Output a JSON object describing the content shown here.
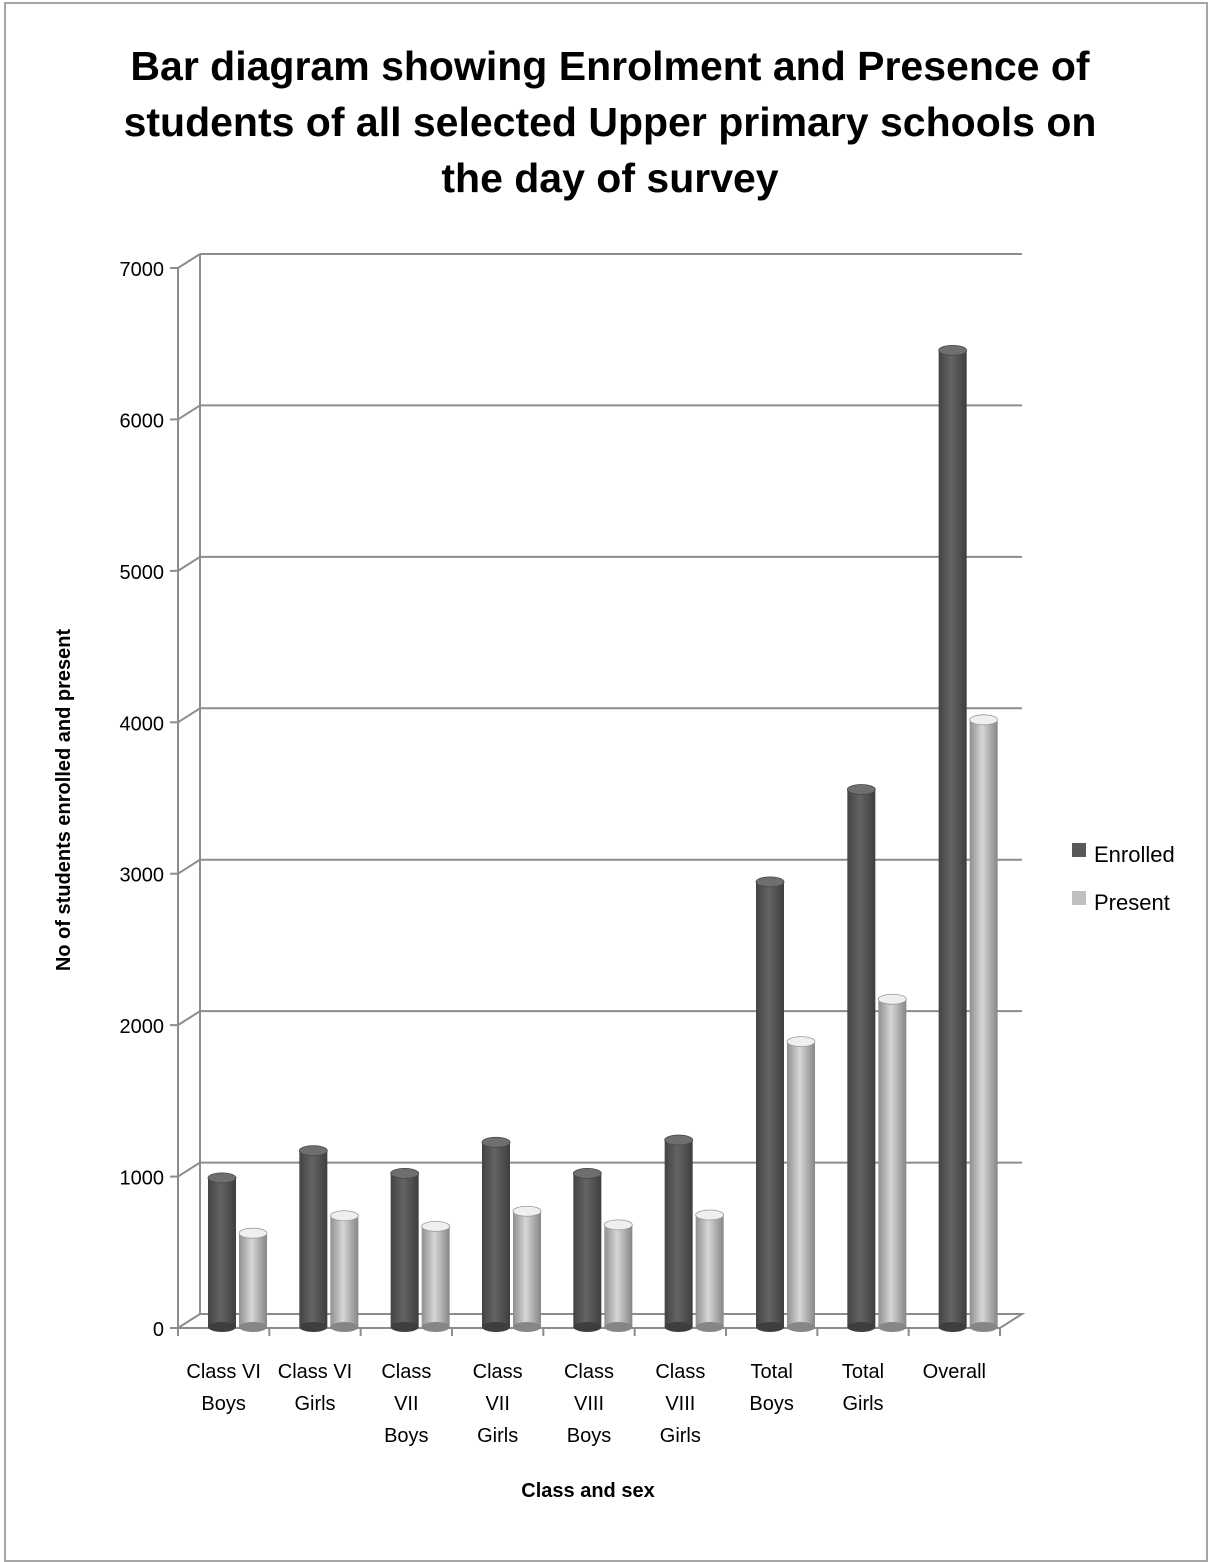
{
  "chart_data": {
    "type": "bar",
    "title": "Bar diagram showing Enrolment and Presence of students of all selected Upper primary schools on the day of survey",
    "xlabel": "Class and sex",
    "ylabel": "No of students enrolled and present",
    "ylim": [
      0,
      7000
    ],
    "yticks": [
      "0",
      "1000",
      "2000",
      "3000",
      "4000",
      "5000",
      "6000",
      "7000"
    ],
    "categories": [
      [
        "Class VI",
        "Boys"
      ],
      [
        "Class VI",
        "Girls"
      ],
      [
        "Class",
        "VII",
        "Boys"
      ],
      [
        "Class",
        "VII",
        "Girls"
      ],
      [
        "Class",
        "VIII",
        "Boys"
      ],
      [
        "Class",
        "VIII",
        "Girls"
      ],
      [
        "Total",
        "Boys"
      ],
      [
        "Total",
        "Girls"
      ],
      [
        "Overall"
      ]
    ],
    "series": [
      {
        "name": "Enrolled",
        "color": "#595959",
        "values": [
          945,
          1125,
          975,
          1180,
          975,
          1195,
          2900,
          3510,
          6410
        ]
      },
      {
        "name": "Present",
        "color": "#bfbfbf",
        "values": [
          580,
          695,
          625,
          725,
          635,
          700,
          1845,
          2125,
          3970
        ]
      }
    ],
    "legend_position": "right",
    "grid": true
  }
}
